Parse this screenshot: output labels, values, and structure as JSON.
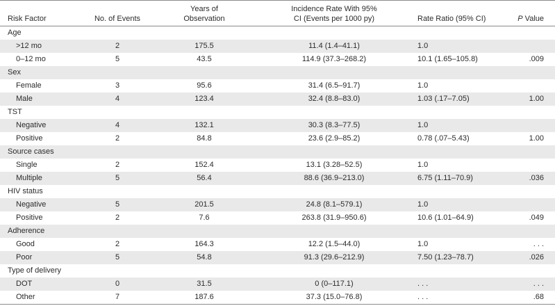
{
  "headers": {
    "risk_factor": "Risk Factor",
    "events": "No. of Events",
    "years_line1": "Years of",
    "years_line2": "Observation",
    "incidence_line1": "Incidence Rate With 95%",
    "incidence_line2": "CI (Events per 1000 py)",
    "rate_ratio": "Rate Ratio (95% CI)",
    "p_value_p": "P",
    "p_value_rest": " Value"
  },
  "rows": [
    {
      "type": "group",
      "label": "Age"
    },
    {
      "type": "data",
      "label": ">12 mo",
      "events": "2",
      "years": "175.5",
      "incidence": "11.4 (1.4–41.1)",
      "rr": "1.0",
      "p": ""
    },
    {
      "type": "data",
      "label": "0–12 mo",
      "events": "5",
      "years": "43.5",
      "incidence": "114.9 (37.3–268.2)",
      "rr": "10.1 (1.65–105.8)",
      "p": ".009"
    },
    {
      "type": "group",
      "label": "Sex"
    },
    {
      "type": "data",
      "label": "Female",
      "events": "3",
      "years": "95.6",
      "incidence": "31.4 (6.5–91.7)",
      "rr": "1.0",
      "p": ""
    },
    {
      "type": "data",
      "label": "Male",
      "events": "4",
      "years": "123.4",
      "incidence": "32.4 (8.8–83.0)",
      "rr": "1.03 (.17–7.05)",
      "p": "1.00"
    },
    {
      "type": "group",
      "label": "TST"
    },
    {
      "type": "data",
      "label": "Negative",
      "events": "4",
      "years": "132.1",
      "incidence": "30.3 (8.3–77.5)",
      "rr": "1.0",
      "p": ""
    },
    {
      "type": "data",
      "label": "Positive",
      "events": "2",
      "years": "84.8",
      "incidence": "23.6 (2.9–85.2)",
      "rr": "0.78 (.07–5.43)",
      "p": "1.00"
    },
    {
      "type": "group",
      "label": "Source cases"
    },
    {
      "type": "data",
      "label": "Single",
      "events": "2",
      "years": "152.4",
      "incidence": "13.1 (3.28–52.5)",
      "rr": "1.0",
      "p": ""
    },
    {
      "type": "data",
      "label": "Multiple",
      "events": "5",
      "years": "56.4",
      "incidence": "88.6 (36.9–213.0)",
      "rr": "6.75 (1.11–70.9)",
      "p": ".036"
    },
    {
      "type": "group",
      "label": "HIV status"
    },
    {
      "type": "data",
      "label": "Negative",
      "events": "5",
      "years": "201.5",
      "incidence": "24.8 (8.1–579.1)",
      "rr": "1.0",
      "p": ""
    },
    {
      "type": "data",
      "label": "Positive",
      "events": "2",
      "years": "7.6",
      "incidence": "263.8 (31.9–950.6)",
      "rr": "10.6 (1.01–64.9)",
      "p": ".049"
    },
    {
      "type": "group",
      "label": "Adherence"
    },
    {
      "type": "data",
      "label": "Good",
      "events": "2",
      "years": "164.3",
      "incidence": "12.2 (1.5–44.0)",
      "rr": "1.0",
      "p": ". . ."
    },
    {
      "type": "data",
      "label": "Poor",
      "events": "5",
      "years": "54.8",
      "incidence": "91.3 (29.6–212.9)",
      "rr": "7.50 (1.23–78.7)",
      "p": ".026"
    },
    {
      "type": "group",
      "label": "Type of delivery"
    },
    {
      "type": "data",
      "label": "DOT",
      "events": "0",
      "years": "31.5",
      "incidence": "0 (0–117.1)",
      "rr": ". . .",
      "p": ". . ."
    },
    {
      "type": "data",
      "label": "Other",
      "events": "7",
      "years": "187.6",
      "incidence": "37.3 (15.0–76.8)",
      "rr": ". . .",
      "p": ".68"
    }
  ]
}
